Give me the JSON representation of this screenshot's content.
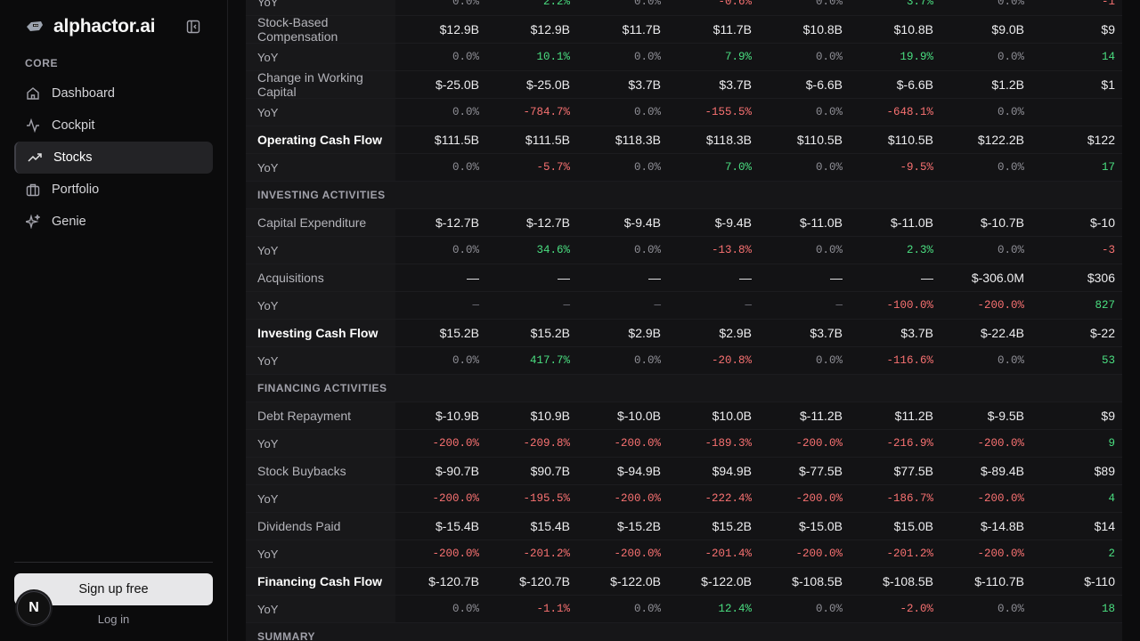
{
  "sidebar": {
    "brand": "alphactor.ai",
    "section_label": "CORE",
    "items": [
      {
        "label": "Dashboard",
        "icon": "home-icon"
      },
      {
        "label": "Cockpit",
        "icon": "activity-icon"
      },
      {
        "label": "Stocks",
        "icon": "trending-up-icon",
        "active": true
      },
      {
        "label": "Portfolio",
        "icon": "briefcase-icon"
      },
      {
        "label": "Genie",
        "icon": "sparkles-icon"
      }
    ],
    "signup_label": "Sign up free",
    "login_label": "Log in",
    "badge_letter": "N"
  },
  "colors": {
    "positive": "#4ade80",
    "negative": "#f87171",
    "active_bg": "#232326"
  },
  "table": {
    "rows": [
      {
        "type": "yoy",
        "label": "YoY",
        "values": [
          "0.0%",
          "2.2%",
          "0.0%",
          "-0.6%",
          "0.0%",
          "3.7%",
          "0.0%",
          "-1"
        ]
      },
      {
        "type": "data",
        "label": "Stock-Based Compensation",
        "values": [
          "$12.9B",
          "$12.9B",
          "$11.7B",
          "$11.7B",
          "$10.8B",
          "$10.8B",
          "$9.0B",
          "$9"
        ]
      },
      {
        "type": "yoy",
        "label": "YoY",
        "values": [
          "0.0%",
          "10.1%",
          "0.0%",
          "7.9%",
          "0.0%",
          "19.9%",
          "0.0%",
          "14"
        ]
      },
      {
        "type": "data",
        "label": "Change in Working Capital",
        "values": [
          "$-25.0B",
          "$-25.0B",
          "$3.7B",
          "$3.7B",
          "$-6.6B",
          "$-6.6B",
          "$1.2B",
          "$1"
        ]
      },
      {
        "type": "yoy",
        "label": "YoY",
        "values": [
          "0.0%",
          "-784.7%",
          "0.0%",
          "-155.5%",
          "0.0%",
          "-648.1%",
          "0.0%",
          ""
        ]
      },
      {
        "type": "total",
        "label": "Operating Cash Flow",
        "values": [
          "$111.5B",
          "$111.5B",
          "$118.3B",
          "$118.3B",
          "$110.5B",
          "$110.5B",
          "$122.2B",
          "$122"
        ]
      },
      {
        "type": "yoy",
        "label": "YoY",
        "values": [
          "0.0%",
          "-5.7%",
          "0.0%",
          "7.0%",
          "0.0%",
          "-9.5%",
          "0.0%",
          "17"
        ]
      },
      {
        "type": "section",
        "label": "INVESTING ACTIVITIES",
        "values": []
      },
      {
        "type": "data",
        "label": "Capital Expenditure",
        "values": [
          "$-12.7B",
          "$-12.7B",
          "$-9.4B",
          "$-9.4B",
          "$-11.0B",
          "$-11.0B",
          "$-10.7B",
          "$-10"
        ]
      },
      {
        "type": "yoy",
        "label": "YoY",
        "values": [
          "0.0%",
          "34.6%",
          "0.0%",
          "-13.8%",
          "0.0%",
          "2.3%",
          "0.0%",
          "-3"
        ]
      },
      {
        "type": "data",
        "label": "Acquisitions",
        "values": [
          "—",
          "—",
          "—",
          "—",
          "—",
          "—",
          "$-306.0M",
          "$306"
        ]
      },
      {
        "type": "yoy",
        "label": "YoY",
        "values": [
          "—",
          "—",
          "—",
          "—",
          "—",
          "-100.0%",
          "-200.0%",
          "827"
        ]
      },
      {
        "type": "total",
        "label": "Investing Cash Flow",
        "values": [
          "$15.2B",
          "$15.2B",
          "$2.9B",
          "$2.9B",
          "$3.7B",
          "$3.7B",
          "$-22.4B",
          "$-22"
        ]
      },
      {
        "type": "yoy",
        "label": "YoY",
        "values": [
          "0.0%",
          "417.7%",
          "0.0%",
          "-20.8%",
          "0.0%",
          "-116.6%",
          "0.0%",
          "53"
        ]
      },
      {
        "type": "section",
        "label": "FINANCING ACTIVITIES",
        "values": []
      },
      {
        "type": "data",
        "label": "Debt Repayment",
        "values": [
          "$-10.9B",
          "$10.9B",
          "$-10.0B",
          "$10.0B",
          "$-11.2B",
          "$11.2B",
          "$-9.5B",
          "$9"
        ]
      },
      {
        "type": "yoy",
        "label": "YoY",
        "values": [
          "-200.0%",
          "-209.8%",
          "-200.0%",
          "-189.3%",
          "-200.0%",
          "-216.9%",
          "-200.0%",
          "9"
        ]
      },
      {
        "type": "data",
        "label": "Stock Buybacks",
        "values": [
          "$-90.7B",
          "$90.7B",
          "$-94.9B",
          "$94.9B",
          "$-77.5B",
          "$77.5B",
          "$-89.4B",
          "$89"
        ]
      },
      {
        "type": "yoy",
        "label": "YoY",
        "values": [
          "-200.0%",
          "-195.5%",
          "-200.0%",
          "-222.4%",
          "-200.0%",
          "-186.7%",
          "-200.0%",
          "4"
        ]
      },
      {
        "type": "data",
        "label": "Dividends Paid",
        "values": [
          "$-15.4B",
          "$15.4B",
          "$-15.2B",
          "$15.2B",
          "$-15.0B",
          "$15.0B",
          "$-14.8B",
          "$14"
        ]
      },
      {
        "type": "yoy",
        "label": "YoY",
        "values": [
          "-200.0%",
          "-201.2%",
          "-200.0%",
          "-201.4%",
          "-200.0%",
          "-201.2%",
          "-200.0%",
          "2"
        ]
      },
      {
        "type": "total",
        "label": "Financing Cash Flow",
        "values": [
          "$-120.7B",
          "$-120.7B",
          "$-122.0B",
          "$-122.0B",
          "$-108.5B",
          "$-108.5B",
          "$-110.7B",
          "$-110"
        ]
      },
      {
        "type": "yoy",
        "label": "YoY",
        "values": [
          "0.0%",
          "-1.1%",
          "0.0%",
          "12.4%",
          "0.0%",
          "-2.0%",
          "0.0%",
          "18"
        ]
      },
      {
        "type": "section",
        "label": "SUMMARY",
        "values": []
      }
    ],
    "yoy_colors": [
      [
        "",
        "pos",
        "",
        "neg",
        "",
        "pos",
        "",
        "neg"
      ],
      [
        "",
        "pos",
        "",
        "pos",
        "",
        "pos",
        "",
        "pos"
      ],
      [
        "",
        "neg",
        "",
        "neg",
        "",
        "neg",
        "",
        ""
      ],
      [
        "",
        "neg",
        "",
        "pos",
        "",
        "neg",
        "",
        "pos"
      ],
      [
        "",
        "pos",
        "",
        "neg",
        "",
        "pos",
        "",
        "neg"
      ],
      [
        "dash",
        "dash",
        "dash",
        "dash",
        "dash",
        "neg",
        "neg",
        "pos"
      ],
      [
        "",
        "pos",
        "",
        "neg",
        "",
        "neg",
        "",
        "pos"
      ],
      [
        "neg",
        "neg",
        "neg",
        "neg",
        "neg",
        "neg",
        "neg",
        "pos"
      ],
      [
        "neg",
        "neg",
        "neg",
        "neg",
        "neg",
        "neg",
        "neg",
        "pos"
      ],
      [
        "neg",
        "neg",
        "neg",
        "neg",
        "neg",
        "neg",
        "neg",
        "pos"
      ],
      [
        "",
        "neg",
        "",
        "pos",
        "",
        "neg",
        "",
        "pos"
      ]
    ]
  }
}
